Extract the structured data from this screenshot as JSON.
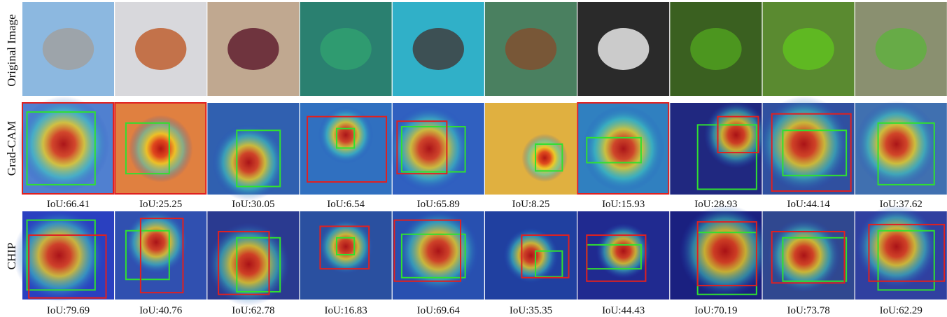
{
  "row_labels": [
    "Original Image",
    "Grad-CAM",
    "CHIP"
  ],
  "gradcam_iou": [
    "IoU:66.41",
    "IoU:25.25",
    "IoU:30.05",
    "IoU:6.54",
    "IoU:65.89",
    "IoU:8.25",
    "IoU:15.93",
    "IoU:28.93",
    "IoU:44.14",
    "IoU:37.62"
  ],
  "chip_iou": [
    "IoU:79.69",
    "IoU:40.76",
    "IoU:62.78",
    "IoU:16.83",
    "IoU:69.64",
    "IoU:35.35",
    "IoU:44.43",
    "IoU:70.19",
    "IoU:73.78",
    "IoU:62.29"
  ]
}
